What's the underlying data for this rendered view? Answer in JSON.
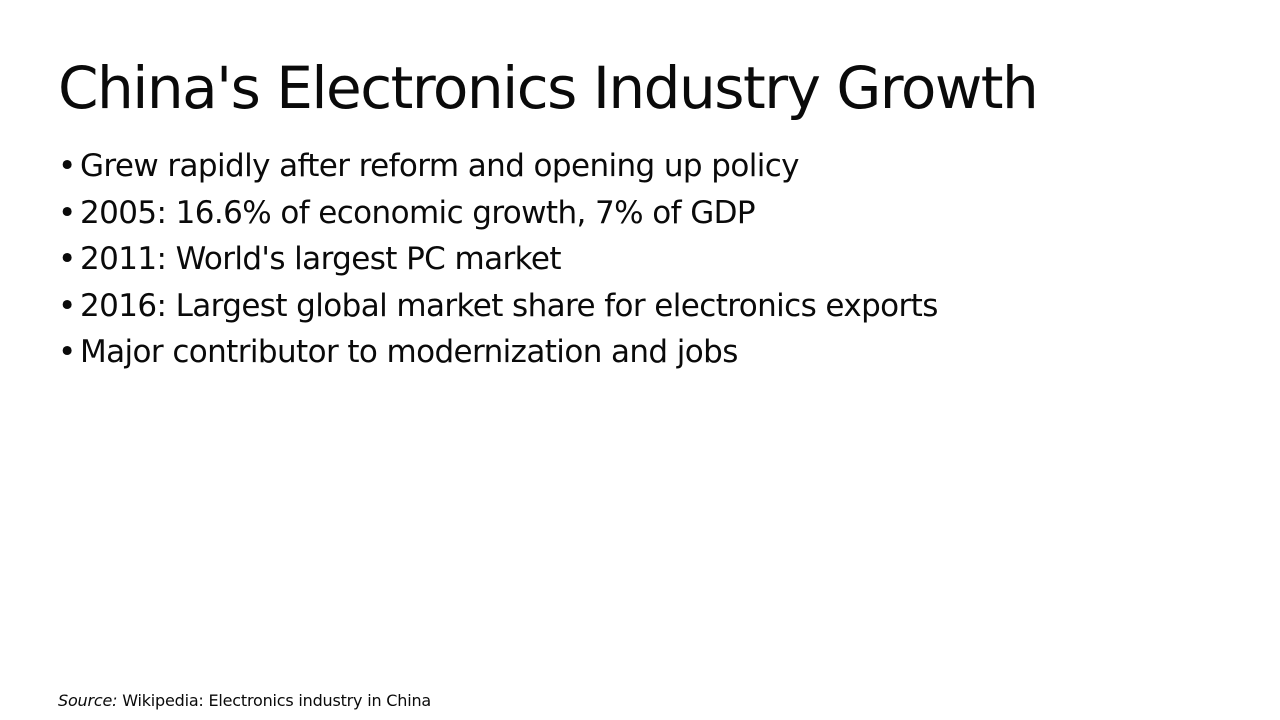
{
  "slide": {
    "title": "China's Electronics Industry Growth",
    "bullet_symbol": "•",
    "bullets": [
      "Grew rapidly after reform and opening up policy",
      "2005: 16.6% of economic growth, 7% of GDP",
      "2011: World's largest PC market",
      "2016: Largest global market share for electronics exports",
      "Major contributor to modernization and jobs"
    ],
    "source_label": "Source:",
    "source_text": "Wikipedia: Electronics industry in China"
  }
}
